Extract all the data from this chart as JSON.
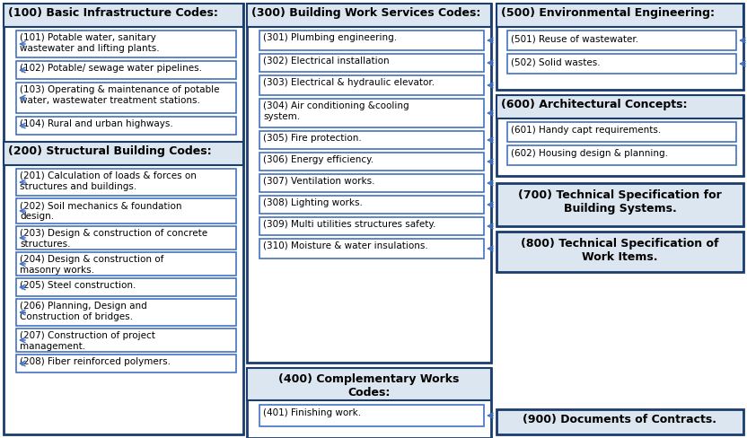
{
  "bg_color": "#ffffff",
  "dark_border": "#1a3c6e",
  "light_border": "#4472c4",
  "header_bg": "#dce6f1",
  "box_bg": "#ffffff",
  "col1_header": "(100) Basic Infrastructure Codes:",
  "col1_items": [
    "(101) Potable water, sanitary\nwastewater and lifting plants.",
    "(102) Potable/ sewage water pipelines.",
    "(103) Operating & maintenance of potable\nwater, wastewater treatment stations.",
    "(104) Rural and urban highways."
  ],
  "col1_header2": "(200) Structural Building Codes:",
  "col1_items2": [
    "(201) Calculation of loads & forces on\nstructures and buildings.",
    "(202) Soil mechanics & foundation\ndesign.",
    "(203) Design & construction of concrete\nstructures.",
    "(204) Design & construction of\nmasonry works.",
    "(205) Steel construction.",
    "(206) Planning, Design and\nConstruction of bridges.",
    "(207) Construction of project\nmanagement.",
    "(208) Fiber reinforced polymers."
  ],
  "col2_header": "(300) Building Work Services Codes:",
  "col2_items": [
    "(301) Plumbing engineering.",
    "(302) Electrical installation",
    "(303) Electrical & hydraulic elevator.",
    "(304) Air conditioning &cooling\nsystem.",
    "(305) Fire protection.",
    "(306) Energy efficiency.",
    "(307) Ventilation works.",
    "(308) Lighting works.",
    "(309) Multi utilities structures safety.",
    "(310) Moisture & water insulations."
  ],
  "col2_header2": "(400) Complementary Works\nCodes:",
  "col2_items2": [
    "(401) Finishing work."
  ],
  "col3_header": "(500) Environmental Engineering:",
  "col3_items": [
    "(501) Reuse of wastewater.",
    "(502) Solid wastes."
  ],
  "col3_header2": "(600) Architectural Concepts:",
  "col3_items2": [
    "(601) Handy capt requirements.",
    "(602) Housing design & planning."
  ],
  "col3_box3": "(700) Technical Specification for\nBuilding Systems.",
  "col3_box4": "(800) Technical Specification of\nWork Items.",
  "col3_box5": "(900) Documents of Contracts."
}
